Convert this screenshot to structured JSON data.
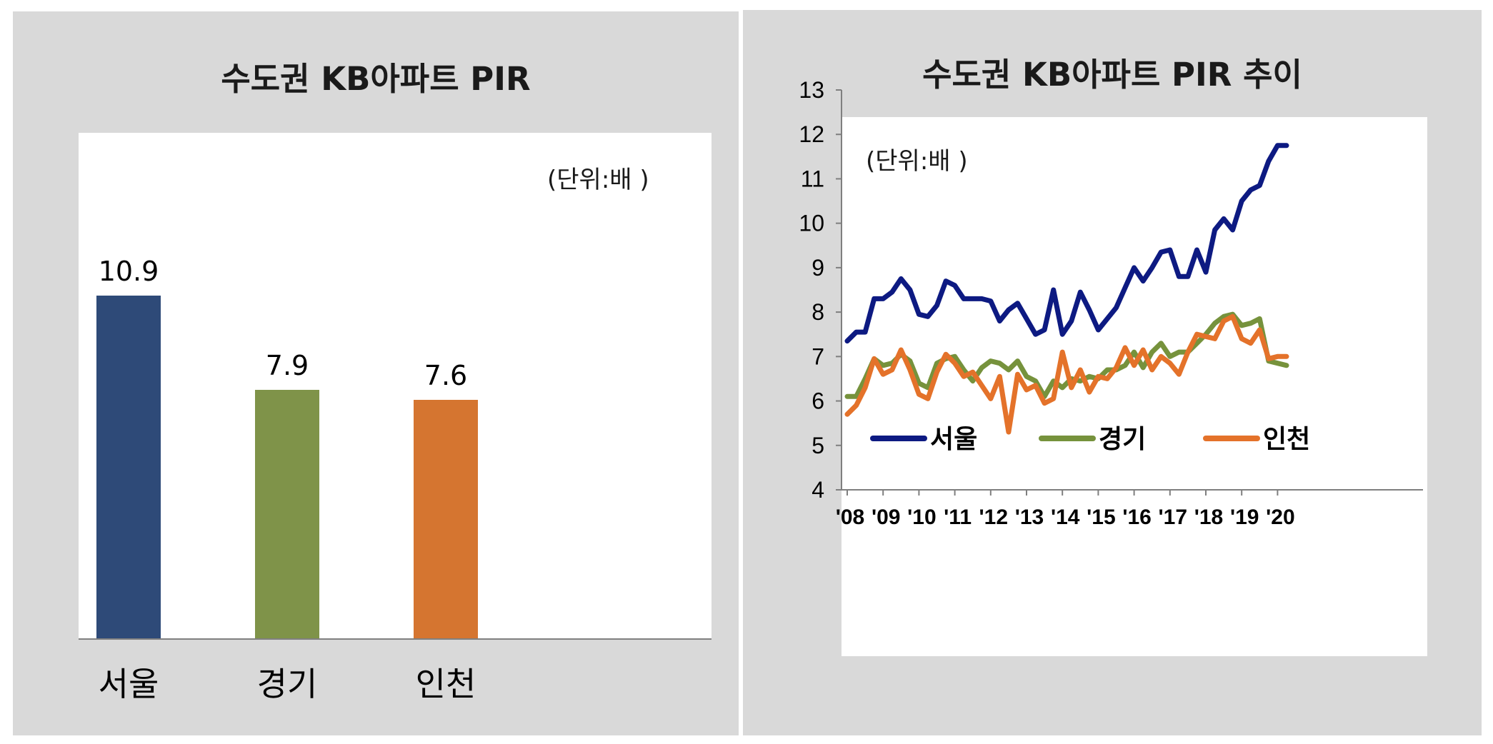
{
  "left_chart": {
    "title": "수도권 KB아파트 PIR",
    "unit": "(단위:배 )"
  },
  "right_chart": {
    "title": "수도권 KB아파트 PIR 추이",
    "unit": "(단위:배 )"
  },
  "colors": {
    "seoul_bar": "#2e4a78",
    "gyeonggi_bar": "#7f9349",
    "incheon_bar": "#d57530",
    "seoul_line": "#0d1a82",
    "gyeonggi_line": "#76923c",
    "incheon_line": "#e4722a"
  },
  "chart_data": [
    {
      "type": "bar",
      "title": "수도권 KB아파트 PIR",
      "unit": "(단위:배 )",
      "categories": [
        "서울",
        "경기",
        "인천"
      ],
      "values": [
        10.9,
        7.9,
        7.6
      ],
      "value_labels": [
        "10.9",
        "7.9",
        "7.6"
      ],
      "ylim": [
        0,
        12
      ]
    },
    {
      "type": "line",
      "title": "수도권 KB아파트 PIR 추이",
      "unit": "(단위:배 )",
      "x_tick_labels": [
        "'08",
        "'09",
        "'10",
        "'11",
        "'12",
        "'13",
        "'14",
        "'15",
        "'16",
        "'17",
        "'18",
        "'19",
        "'20"
      ],
      "y_tick_labels": [
        "4",
        "5",
        "6",
        "7",
        "8",
        "9",
        "10",
        "11",
        "12",
        "13"
      ],
      "ylim": [
        4,
        13
      ],
      "xlim": [
        2008,
        2021
      ],
      "legend_position": "lower-center",
      "series": [
        {
          "name": "서울",
          "x": [
            2008.0,
            2008.25,
            2008.5,
            2008.75,
            2009.0,
            2009.25,
            2009.5,
            2009.75,
            2010.0,
            2010.25,
            2010.5,
            2010.75,
            2011.0,
            2011.25,
            2011.5,
            2011.75,
            2012.0,
            2012.25,
            2012.5,
            2012.75,
            2013.0,
            2013.25,
            2013.5,
            2013.75,
            2014.0,
            2014.25,
            2014.5,
            2014.75,
            2015.0,
            2015.25,
            2015.5,
            2015.75,
            2016.0,
            2016.25,
            2016.5,
            2016.75,
            2017.0,
            2017.25,
            2017.5,
            2017.75,
            2018.0,
            2018.25,
            2018.5,
            2018.75,
            2019.0,
            2019.25,
            2019.5,
            2019.75,
            2020.0,
            2020.25
          ],
          "values": [
            7.35,
            7.55,
            7.55,
            8.3,
            8.3,
            8.45,
            8.75,
            8.5,
            7.95,
            7.9,
            8.15,
            8.7,
            8.6,
            8.3,
            8.3,
            8.3,
            8.25,
            7.8,
            8.05,
            8.2,
            7.85,
            7.5,
            7.6,
            8.5,
            7.5,
            7.8,
            8.45,
            8.05,
            7.6,
            7.85,
            8.1,
            8.55,
            9.0,
            8.7,
            9.0,
            9.35,
            9.4,
            8.8,
            8.8,
            9.4,
            8.9,
            9.85,
            10.1,
            9.85,
            10.5,
            10.75,
            10.85,
            11.4,
            11.75,
            11.75
          ]
        },
        {
          "name": "경기",
          "x": [
            2008.0,
            2008.25,
            2008.5,
            2008.75,
            2009.0,
            2009.25,
            2009.5,
            2009.75,
            2010.0,
            2010.25,
            2010.5,
            2010.75,
            2011.0,
            2011.25,
            2011.5,
            2011.75,
            2012.0,
            2012.25,
            2012.5,
            2012.75,
            2013.0,
            2013.25,
            2013.5,
            2013.75,
            2014.0,
            2014.25,
            2014.5,
            2014.75,
            2015.0,
            2015.25,
            2015.5,
            2015.75,
            2016.0,
            2016.25,
            2016.5,
            2016.75,
            2017.0,
            2017.25,
            2017.5,
            2017.75,
            2018.0,
            2018.25,
            2018.5,
            2018.75,
            2019.0,
            2019.25,
            2019.5,
            2019.75,
            2020.0,
            2020.25
          ],
          "values": [
            6.1,
            6.1,
            6.5,
            6.95,
            6.8,
            6.85,
            7.05,
            6.9,
            6.4,
            6.3,
            6.85,
            6.95,
            7.0,
            6.7,
            6.45,
            6.75,
            6.9,
            6.85,
            6.7,
            6.9,
            6.55,
            6.45,
            6.1,
            6.45,
            6.3,
            6.5,
            6.45,
            6.55,
            6.5,
            6.7,
            6.7,
            6.8,
            7.1,
            6.75,
            7.1,
            7.3,
            7.0,
            7.1,
            7.1,
            7.3,
            7.5,
            7.75,
            7.9,
            7.95,
            7.7,
            7.75,
            7.85,
            6.9,
            6.85,
            6.8
          ]
        },
        {
          "name": "인천",
          "x": [
            2008.0,
            2008.25,
            2008.5,
            2008.75,
            2009.0,
            2009.25,
            2009.5,
            2009.75,
            2010.0,
            2010.25,
            2010.5,
            2010.75,
            2011.0,
            2011.25,
            2011.5,
            2011.75,
            2012.0,
            2012.25,
            2012.5,
            2012.75,
            2013.0,
            2013.25,
            2013.5,
            2013.75,
            2014.0,
            2014.25,
            2014.5,
            2014.75,
            2015.0,
            2015.25,
            2015.5,
            2015.75,
            2016.0,
            2016.25,
            2016.5,
            2016.75,
            2017.0,
            2017.25,
            2017.5,
            2017.75,
            2018.0,
            2018.25,
            2018.5,
            2018.75,
            2019.0,
            2019.25,
            2019.5,
            2019.75,
            2020.0,
            2020.25
          ],
          "values": [
            5.7,
            5.9,
            6.3,
            6.95,
            6.6,
            6.7,
            7.15,
            6.7,
            6.15,
            6.05,
            6.65,
            7.05,
            6.85,
            6.55,
            6.65,
            6.35,
            6.05,
            6.55,
            5.3,
            6.6,
            6.25,
            6.35,
            5.95,
            6.05,
            7.1,
            6.3,
            6.7,
            6.2,
            6.55,
            6.5,
            6.75,
            7.2,
            6.8,
            7.15,
            6.7,
            7.0,
            6.85,
            6.6,
            7.1,
            7.5,
            7.45,
            7.4,
            7.8,
            7.9,
            7.4,
            7.3,
            7.6,
            6.95,
            7.0,
            7.0
          ]
        }
      ]
    }
  ]
}
